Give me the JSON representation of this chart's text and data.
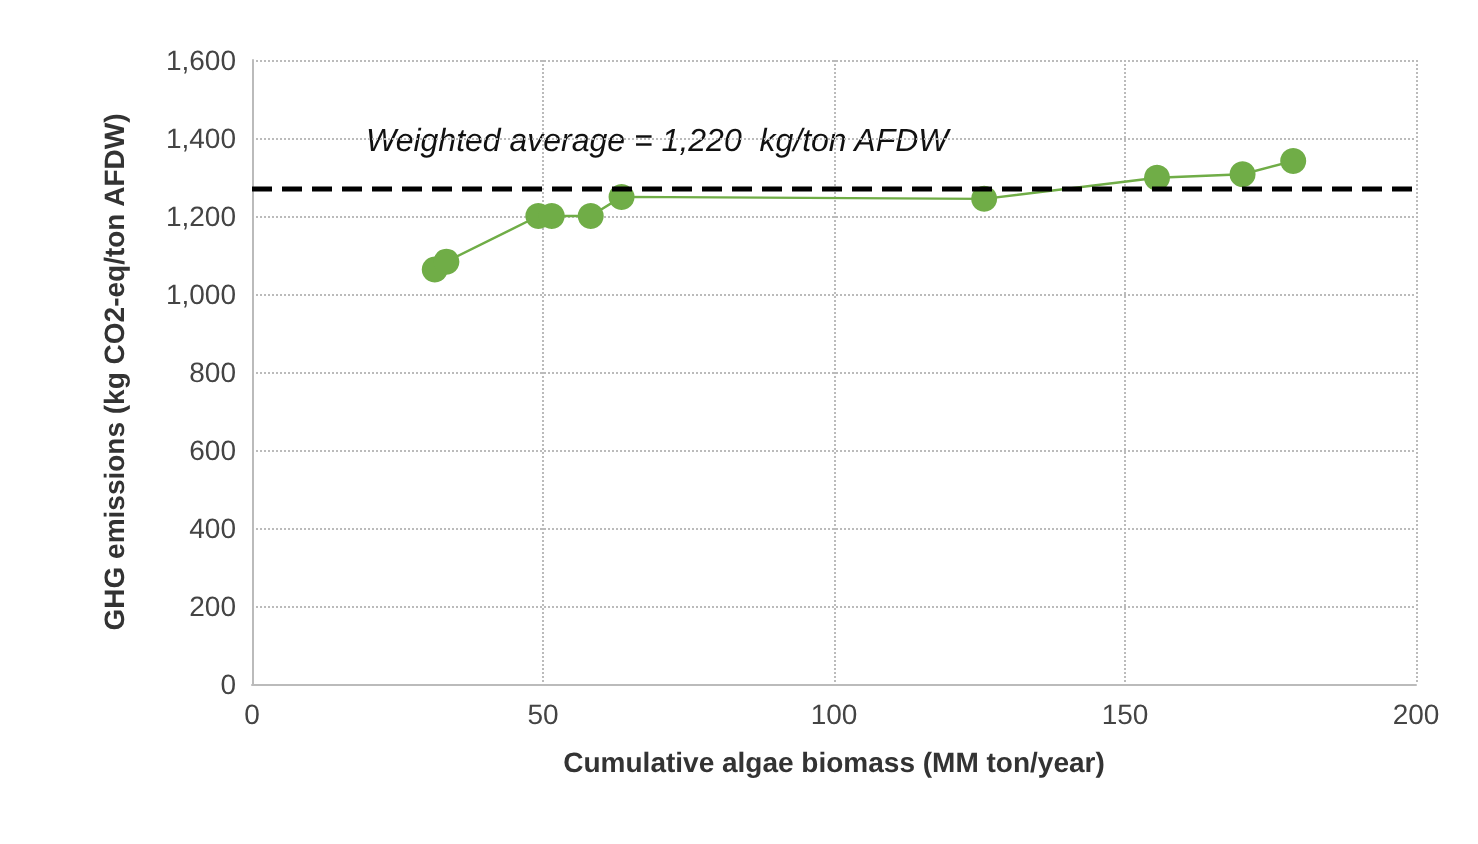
{
  "chart_data": {
    "type": "line",
    "xlabel": "Cumulative algae biomass (MM ton/year)",
    "ylabel": "GHG emissions (kg CO2-eq/ton AFDW)",
    "x": [
      31.4,
      33.4,
      49.2,
      51.5,
      58.2,
      63.5,
      125.8,
      155.5,
      170.2,
      178.9
    ],
    "series": [
      {
        "color": "#70ad47",
        "values": [
          1063,
          1083,
          1200,
          1200,
          1200,
          1249,
          1244,
          1298,
          1307,
          1341
        ]
      }
    ],
    "xlim": [
      0,
      200
    ],
    "xticks": [
      0,
      50,
      100,
      150,
      200
    ],
    "ylim": [
      0,
      1600
    ],
    "yticks": [
      {
        "value": 0,
        "label": "0"
      },
      {
        "value": 200,
        "label": "200"
      },
      {
        "value": 400,
        "label": "400"
      },
      {
        "value": 600,
        "label": "600"
      },
      {
        "value": 800,
        "label": "800"
      },
      {
        "value": 1000,
        "label": "1,000"
      },
      {
        "value": 1200,
        "label": "1,200"
      },
      {
        "value": 1400,
        "label": "1,400"
      },
      {
        "value": 1600,
        "label": "1,600"
      }
    ],
    "grid": true,
    "marker": "circle",
    "line_style": "solid",
    "annotations": [
      "Weighted average = 1,220  kg/ton AFDW"
    ],
    "ref_lines": [
      {
        "axis": "y",
        "value": 1270,
        "color": "#000000",
        "line_style": "dashed"
      }
    ]
  }
}
